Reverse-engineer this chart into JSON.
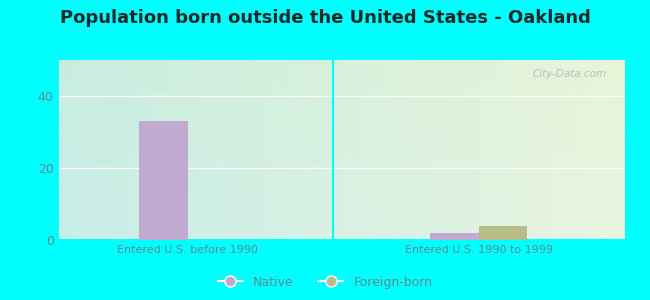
{
  "title": "Population born outside the United States - Oakland",
  "title_fontsize": 13,
  "title_color": "#1a2a2a",
  "groups": [
    "Entered U.S. before 1990",
    "Entered U.S. 1990 to 1999"
  ],
  "native_values": [
    33,
    2
  ],
  "foreign_values": [
    0,
    4
  ],
  "native_color": "#c0aad0",
  "foreign_color": "#b8bc88",
  "ylim": [
    0,
    50
  ],
  "yticks": [
    0,
    20,
    40
  ],
  "background_outer": "#00ffff",
  "grad_bottom_left": "#c8ede8",
  "grad_top_right": "#e8f5e0",
  "grid_color": "#ffffff",
  "bar_width": 0.3,
  "label_color": "#5a8a9a",
  "tick_color": "#5a8a9a",
  "watermark": "City-Data.com",
  "legend_native": "Native",
  "legend_foreign": "Foreign-born",
  "legend_color": "#5a8a9a"
}
